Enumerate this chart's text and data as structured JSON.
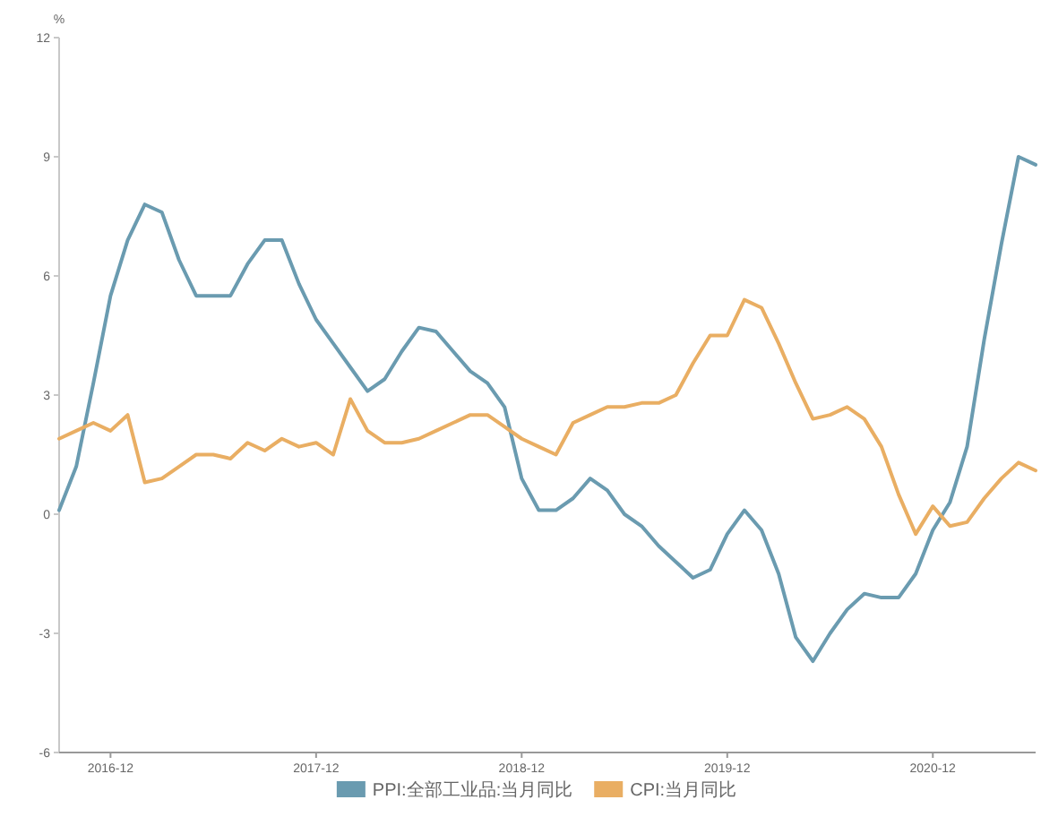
{
  "chart_data": {
    "type": "line",
    "ylabel": "%",
    "x": [
      "2016-09",
      "2016-10",
      "2016-11",
      "2016-12",
      "2017-01",
      "2017-02",
      "2017-03",
      "2017-04",
      "2017-05",
      "2017-06",
      "2017-07",
      "2017-08",
      "2017-09",
      "2017-10",
      "2017-11",
      "2017-12",
      "2018-01",
      "2018-02",
      "2018-03",
      "2018-04",
      "2018-05",
      "2018-06",
      "2018-07",
      "2018-08",
      "2018-09",
      "2018-10",
      "2018-11",
      "2018-12",
      "2019-01",
      "2019-02",
      "2019-03",
      "2019-04",
      "2019-05",
      "2019-06",
      "2019-07",
      "2019-08",
      "2019-09",
      "2019-10",
      "2019-11",
      "2019-12",
      "2020-01",
      "2020-02",
      "2020-03",
      "2020-04",
      "2020-05",
      "2020-06",
      "2020-07",
      "2020-08",
      "2020-09",
      "2020-10",
      "2020-11",
      "2020-12",
      "2021-01",
      "2021-02",
      "2021-03",
      "2021-04",
      "2021-05",
      "2021-06"
    ],
    "series": [
      {
        "name": "PPI:全部工业品:当月同比",
        "color": "#6a9bb0",
        "values": [
          0.1,
          1.2,
          3.3,
          5.5,
          6.9,
          7.8,
          7.6,
          6.4,
          5.5,
          5.5,
          5.5,
          6.3,
          6.9,
          6.9,
          5.8,
          4.9,
          4.3,
          3.7,
          3.1,
          3.4,
          4.1,
          4.7,
          4.6,
          4.1,
          3.6,
          3.3,
          2.7,
          0.9,
          0.1,
          0.1,
          0.4,
          0.9,
          0.6,
          0.0,
          -0.3,
          -0.8,
          -1.2,
          -1.6,
          -1.4,
          -0.5,
          0.1,
          -0.4,
          -1.5,
          -3.1,
          -3.7,
          -3.0,
          -2.4,
          -2.0,
          -2.1,
          -2.1,
          -1.5,
          -0.4,
          0.3,
          1.7,
          4.4,
          6.8,
          9.0,
          8.8
        ]
      },
      {
        "name": "CPI:当月同比",
        "color": "#e9ae63",
        "values": [
          1.9,
          2.1,
          2.3,
          2.1,
          2.5,
          0.8,
          0.9,
          1.2,
          1.5,
          1.5,
          1.4,
          1.8,
          1.6,
          1.9,
          1.7,
          1.8,
          1.5,
          2.9,
          2.1,
          1.8,
          1.8,
          1.9,
          2.1,
          2.3,
          2.5,
          2.5,
          2.2,
          1.9,
          1.7,
          1.5,
          2.3,
          2.5,
          2.7,
          2.7,
          2.8,
          2.8,
          3.0,
          3.8,
          4.5,
          4.5,
          5.4,
          5.2,
          4.3,
          3.3,
          2.4,
          2.5,
          2.7,
          2.4,
          1.7,
          0.5,
          -0.5,
          0.2,
          -0.3,
          -0.2,
          0.4,
          0.9,
          1.3,
          1.1
        ]
      }
    ],
    "xlim": [
      "2016-09",
      "2021-06"
    ],
    "xticks": [
      "2016-12",
      "2017-12",
      "2018-12",
      "2019-12",
      "2020-12"
    ],
    "ylim": [
      -6,
      12
    ],
    "yticks": [
      -6,
      -3,
      0,
      3,
      6,
      9,
      12
    ],
    "grid": false,
    "legend": "bottom",
    "marker": "none",
    "line_style": "solid"
  }
}
